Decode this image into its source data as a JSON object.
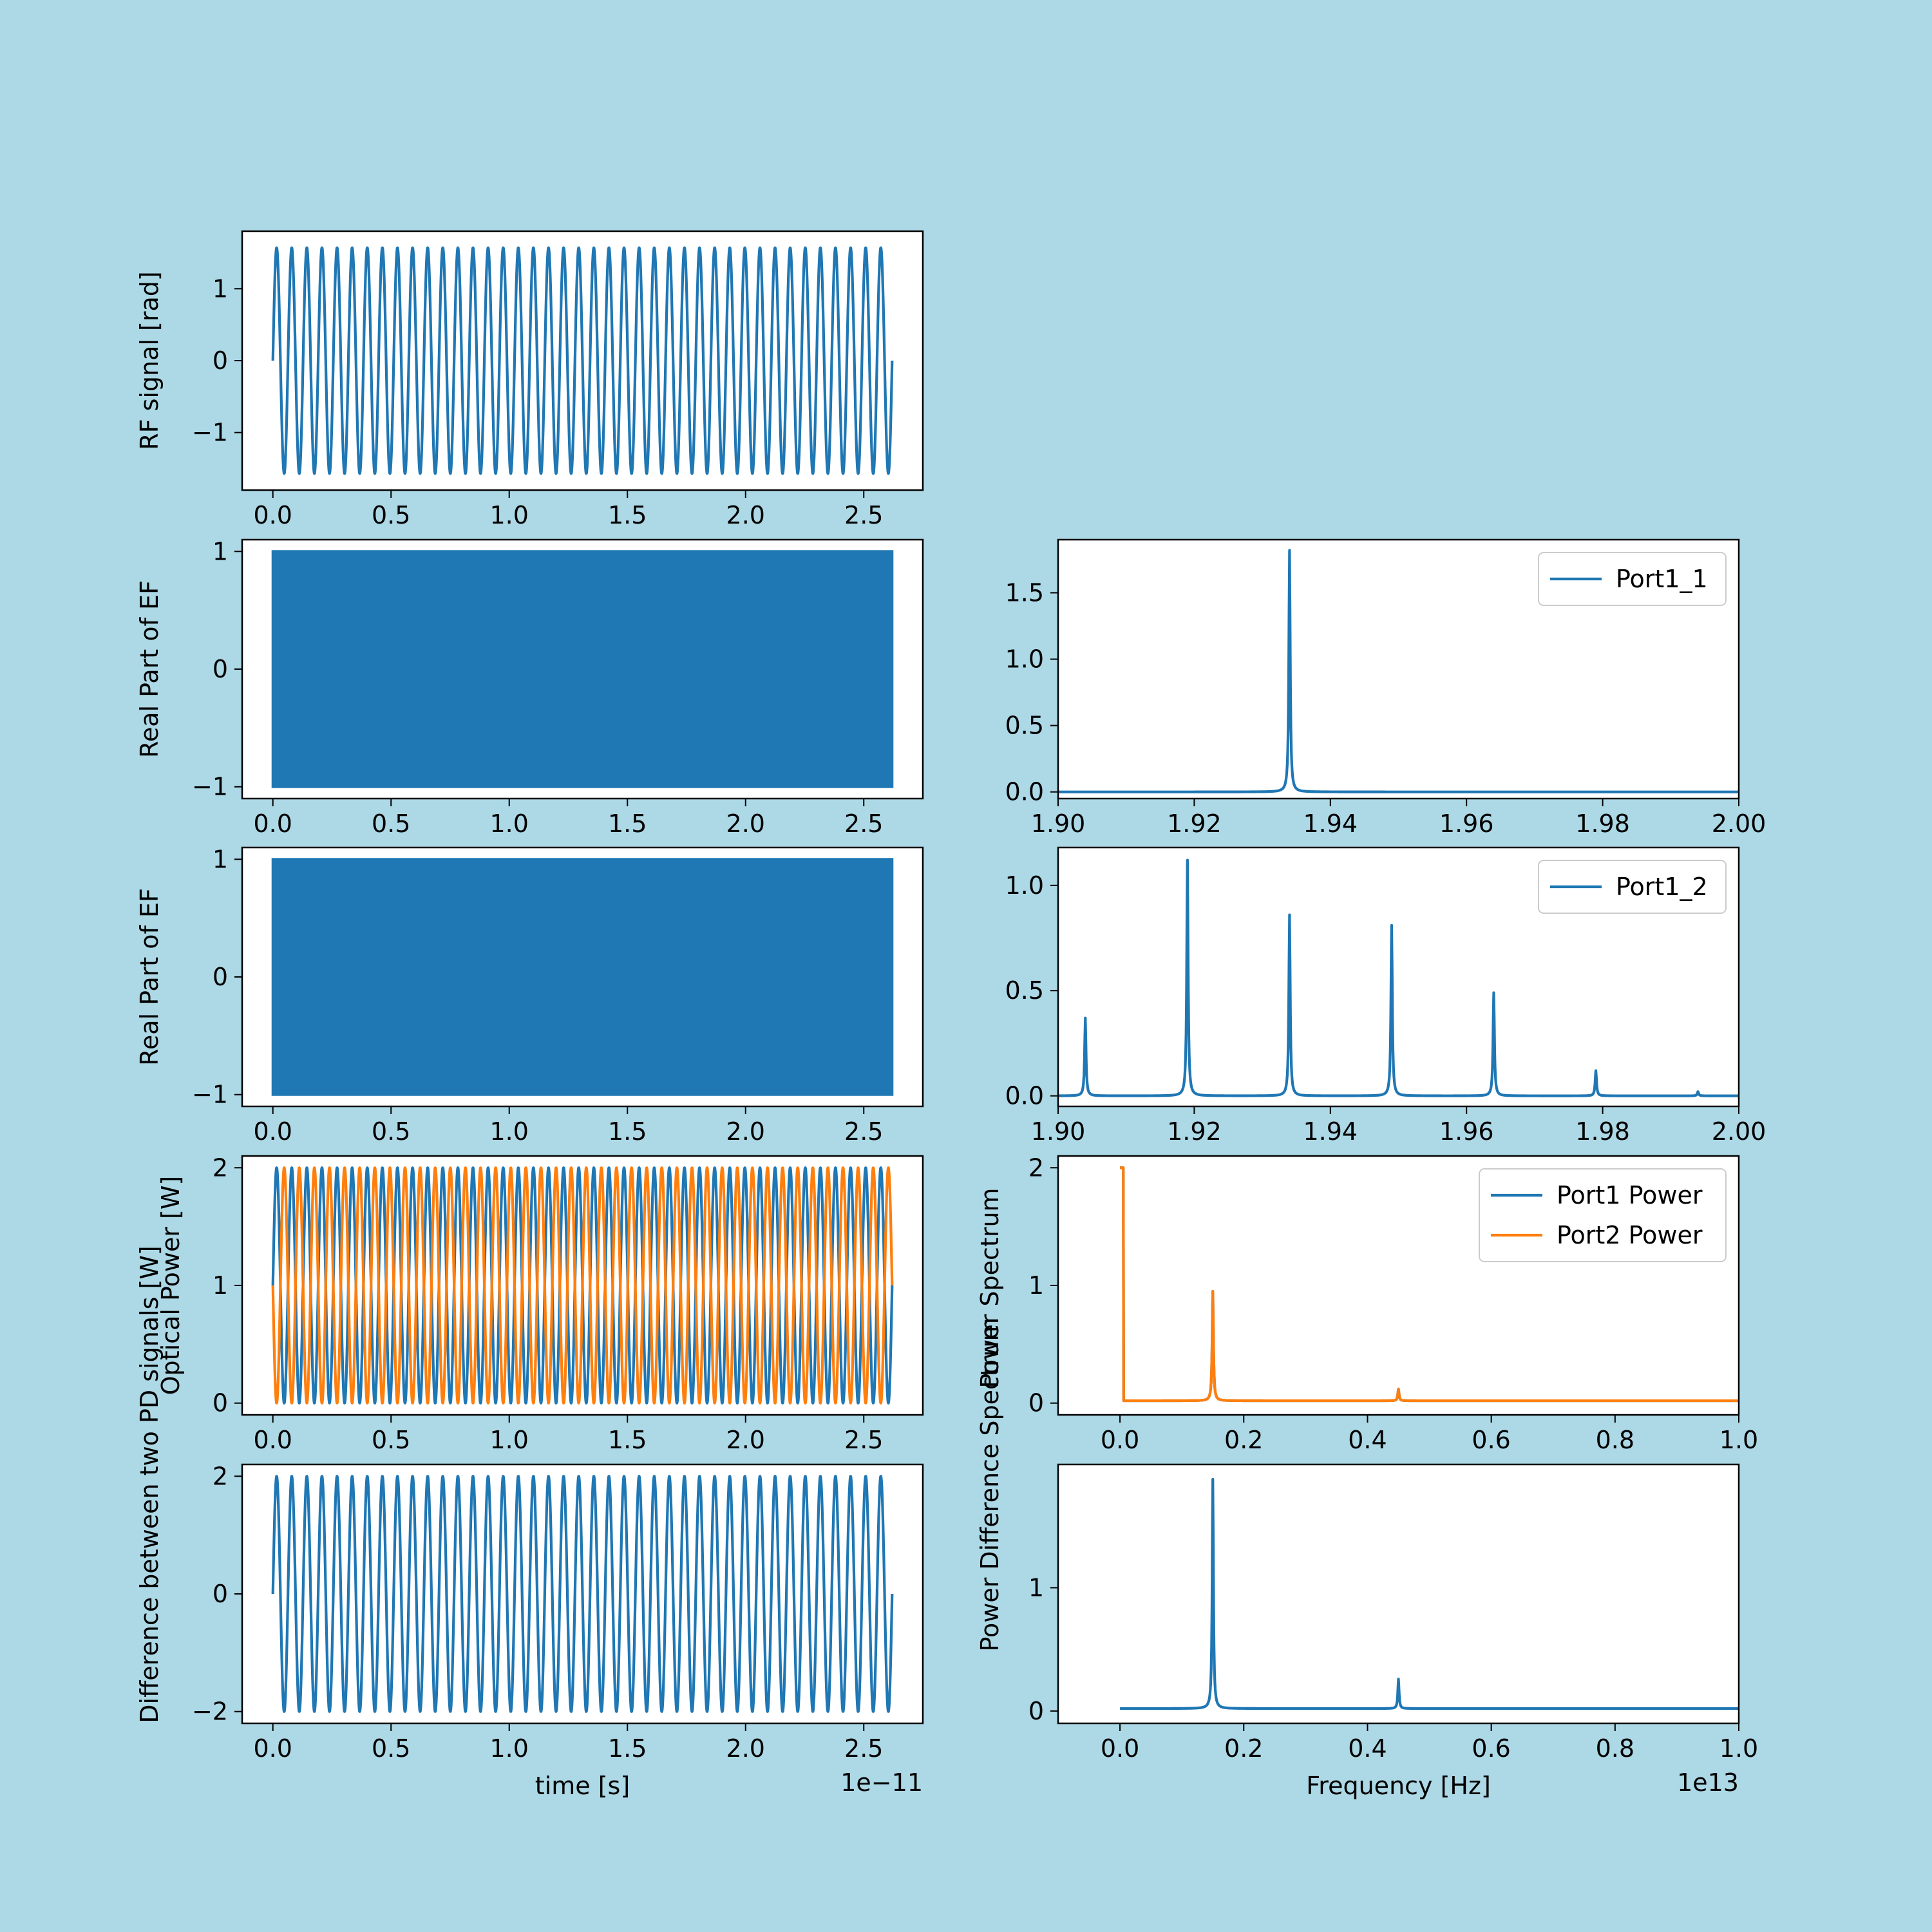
{
  "colors": {
    "background": "#add8e6",
    "plot_face": "#ffffff",
    "series_blue": "#1f77b4",
    "series_orange": "#ff7f0e",
    "axis": "#000000",
    "legend_edge": "#cccccc"
  },
  "chart_data": [
    {
      "id": "rf",
      "type": "line",
      "panel": "left-row-1",
      "title": "",
      "xlabel": "",
      "ylabel": "RF signal [rad]",
      "xlim": [
        -0.13,
        2.75
      ],
      "ylim": [
        -1.8,
        1.8
      ],
      "xticks": [
        0.0,
        0.5,
        1.0,
        1.5,
        2.0,
        2.5
      ],
      "xtick_labels": [
        "0.0",
        "0.5",
        "1.0",
        "1.5",
        "2.0",
        "2.5"
      ],
      "yticks": [
        -1,
        0,
        1
      ],
      "ytick_labels": [
        "−1",
        "0",
        "1"
      ],
      "legend": null,
      "series": [
        {
          "generator": "sine",
          "amplitude": 1.57,
          "offset": 0,
          "cycles": 41,
          "x_start": 0.0,
          "x_end": 2.62,
          "color": "#1f77b4"
        }
      ]
    },
    {
      "id": "ef1",
      "type": "area",
      "panel": "left-row-2",
      "title": "",
      "xlabel": "",
      "ylabel": "Real Part of EF",
      "xlim": [
        -0.13,
        2.75
      ],
      "ylim": [
        -1.1,
        1.1
      ],
      "xticks": [
        0.0,
        0.5,
        1.0,
        1.5,
        2.0,
        2.5
      ],
      "xtick_labels": [
        "0.0",
        "0.5",
        "1.0",
        "1.5",
        "2.0",
        "2.5"
      ],
      "yticks": [
        -1,
        0,
        1
      ],
      "ytick_labels": [
        "−1",
        "0",
        "1"
      ],
      "legend": null,
      "series": [
        {
          "generator": "filled-band",
          "y_min": -1,
          "y_max": 1,
          "x_start": 0.0,
          "x_end": 2.62,
          "color": "#1f77b4"
        }
      ]
    },
    {
      "id": "spec1",
      "type": "line",
      "panel": "right-row-2",
      "title": "",
      "xlabel": "",
      "ylabel": "",
      "xlim": [
        1.9,
        2.0
      ],
      "ylim": [
        -0.05,
        1.9
      ],
      "xticks": [
        1.9,
        1.92,
        1.94,
        1.96,
        1.98,
        2.0
      ],
      "xtick_labels": [
        "1.90",
        "1.92",
        "1.94",
        "1.96",
        "1.98",
        "2.00"
      ],
      "yticks": [
        0.0,
        0.5,
        1.0,
        1.5
      ],
      "ytick_labels": [
        "0.0",
        "0.5",
        "1.0",
        "1.5"
      ],
      "legend": {
        "location": "upper-right",
        "entries": [
          {
            "label": "Port1_1",
            "color": "#1f77b4"
          }
        ]
      },
      "series": [
        {
          "name": "Port1_1",
          "generator": "lorentz",
          "x_start": 1.9,
          "x_end": 2.0,
          "baseline": 0.0,
          "color": "#1f77b4",
          "peaks": [
            {
              "x": 1.934,
              "height": 1.82
            }
          ]
        }
      ]
    },
    {
      "id": "ef2",
      "type": "area",
      "panel": "left-row-3",
      "title": "",
      "xlabel": "",
      "ylabel": "Real Part of EF",
      "xlim": [
        -0.13,
        2.75
      ],
      "ylim": [
        -1.1,
        1.1
      ],
      "xticks": [
        0.0,
        0.5,
        1.0,
        1.5,
        2.0,
        2.5
      ],
      "xtick_labels": [
        "0.0",
        "0.5",
        "1.0",
        "1.5",
        "2.0",
        "2.5"
      ],
      "yticks": [
        -1,
        0,
        1
      ],
      "ytick_labels": [
        "−1",
        "0",
        "1"
      ],
      "legend": null,
      "series": [
        {
          "generator": "filled-band",
          "y_min": -1,
          "y_max": 1,
          "x_start": 0.0,
          "x_end": 2.62,
          "color": "#1f77b4"
        }
      ]
    },
    {
      "id": "spec2",
      "type": "line",
      "panel": "right-row-3",
      "title": "",
      "xlabel": "",
      "ylabel": "",
      "xlim": [
        1.9,
        2.0
      ],
      "ylim": [
        -0.05,
        1.18
      ],
      "xticks": [
        1.9,
        1.92,
        1.94,
        1.96,
        1.98,
        2.0
      ],
      "xtick_labels": [
        "1.90",
        "1.92",
        "1.94",
        "1.96",
        "1.98",
        "2.00"
      ],
      "yticks": [
        0.0,
        0.5,
        1.0
      ],
      "ytick_labels": [
        "0.0",
        "0.5",
        "1.0"
      ],
      "legend": {
        "location": "upper-right",
        "entries": [
          {
            "label": "Port1_2",
            "color": "#1f77b4"
          }
        ]
      },
      "series": [
        {
          "name": "Port1_2",
          "generator": "lorentz",
          "x_start": 1.9,
          "x_end": 2.0,
          "baseline": 0.0,
          "color": "#1f77b4",
          "peaks": [
            {
              "x": 1.904,
              "height": 0.37
            },
            {
              "x": 1.919,
              "height": 1.12
            },
            {
              "x": 1.934,
              "height": 0.86
            },
            {
              "x": 1.949,
              "height": 0.81
            },
            {
              "x": 1.964,
              "height": 0.49
            },
            {
              "x": 1.979,
              "height": 0.12
            },
            {
              "x": 1.994,
              "height": 0.02
            }
          ]
        }
      ]
    },
    {
      "id": "opt",
      "type": "line",
      "panel": "left-row-4",
      "title": "",
      "xlabel": "",
      "ylabel": "Optical Power [W]",
      "xlim": [
        -0.13,
        2.75
      ],
      "ylim": [
        -0.1,
        2.1
      ],
      "xticks": [
        0.0,
        0.5,
        1.0,
        1.5,
        2.0,
        2.5
      ],
      "xtick_labels": [
        "0.0",
        "0.5",
        "1.0",
        "1.5",
        "2.0",
        "2.5"
      ],
      "yticks": [
        0,
        1,
        2
      ],
      "ytick_labels": [
        "0",
        "1",
        "2"
      ],
      "legend": null,
      "series": [
        {
          "generator": "sine",
          "amplitude": 1.0,
          "offset": 1.0,
          "cycles": 41,
          "x_start": 0.0,
          "x_end": 2.62,
          "color": "#1f77b4"
        },
        {
          "generator": "sine",
          "amplitude": -1.0,
          "offset": 1.0,
          "cycles": 41,
          "x_start": 0.0,
          "x_end": 2.62,
          "color": "#ff7f0e"
        }
      ]
    },
    {
      "id": "pspec",
      "type": "line",
      "panel": "right-row-4",
      "title": "",
      "xlabel": "",
      "ylabel": "Power Spectrum",
      "xlim": [
        -0.1,
        1.0
      ],
      "ylim": [
        -0.1,
        2.1
      ],
      "xticks": [
        0.0,
        0.2,
        0.4,
        0.6,
        0.8,
        1.0
      ],
      "xtick_labels": [
        "0.0",
        "0.2",
        "0.4",
        "0.6",
        "0.8",
        "1.0"
      ],
      "yticks": [
        0,
        1,
        2
      ],
      "ytick_labels": [
        "0",
        "1",
        "2"
      ],
      "legend": {
        "location": "upper-right",
        "entries": [
          {
            "label": "Port1 Power",
            "color": "#1f77b4"
          },
          {
            "label": "Port2 Power",
            "color": "#ff7f0e"
          }
        ]
      },
      "series": [
        {
          "name": "Port1 Power",
          "generator": "lorentz",
          "x_start": 0.0,
          "x_end": 1.0,
          "baseline": 0.02,
          "color": "#1f77b4",
          "peaks": [
            {
              "x": 0.0,
              "height": 2.0
            },
            {
              "x": 0.15,
              "height": 0.95
            },
            {
              "x": 0.45,
              "height": 0.12
            }
          ]
        },
        {
          "name": "Port2 Power",
          "generator": "lorentz",
          "x_start": 0.0,
          "x_end": 1.0,
          "baseline": 0.02,
          "color": "#ff7f0e",
          "peaks": [
            {
              "x": 0.0,
              "height": 2.0
            },
            {
              "x": 0.15,
              "height": 0.95
            },
            {
              "x": 0.45,
              "height": 0.12
            }
          ]
        }
      ]
    },
    {
      "id": "diff",
      "type": "line",
      "panel": "left-row-5",
      "title": "",
      "xlabel": "time [s]",
      "ylabel": "Difference between two PD signals [W]",
      "x_offset_label": "1e−11",
      "xlim": [
        -0.13,
        2.75
      ],
      "ylim": [
        -2.2,
        2.2
      ],
      "xticks": [
        0.0,
        0.5,
        1.0,
        1.5,
        2.0,
        2.5
      ],
      "xtick_labels": [
        "0.0",
        "0.5",
        "1.0",
        "1.5",
        "2.0",
        "2.5"
      ],
      "yticks": [
        -2,
        0,
        2
      ],
      "ytick_labels": [
        "−2",
        "0",
        "2"
      ],
      "legend": null,
      "series": [
        {
          "generator": "sine",
          "amplitude": 2.0,
          "offset": 0,
          "cycles": 41,
          "x_start": 0.0,
          "x_end": 2.62,
          "color": "#1f77b4"
        }
      ]
    },
    {
      "id": "dspec",
      "type": "line",
      "panel": "right-row-5",
      "title": "",
      "xlabel": "Frequency [Hz]",
      "ylabel": "Power Difference Spectrum",
      "x_offset_label": "1e13",
      "xlim": [
        -0.1,
        1.0
      ],
      "ylim": [
        -0.1,
        2.0
      ],
      "xticks": [
        0.0,
        0.2,
        0.4,
        0.6,
        0.8,
        1.0
      ],
      "xtick_labels": [
        "0.0",
        "0.2",
        "0.4",
        "0.6",
        "0.8",
        "1.0"
      ],
      "yticks": [
        0,
        1
      ],
      "ytick_labels": [
        "0",
        "1"
      ],
      "legend": null,
      "series": [
        {
          "generator": "lorentz",
          "x_start": 0.0,
          "x_end": 1.0,
          "baseline": 0.02,
          "color": "#1f77b4",
          "peaks": [
            {
              "x": 0.15,
              "height": 1.88
            },
            {
              "x": 0.45,
              "height": 0.26
            }
          ]
        }
      ]
    }
  ]
}
